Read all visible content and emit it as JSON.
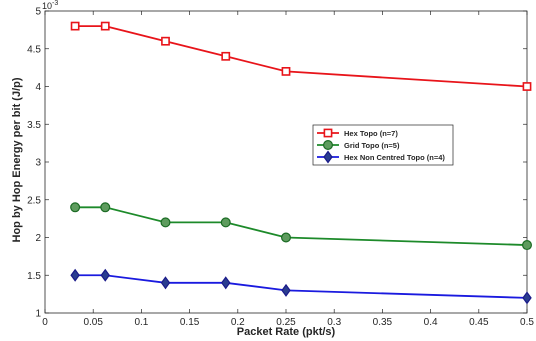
{
  "chart_data": {
    "type": "line",
    "xlabel": "Packet Rate (pkt/s)",
    "ylabel": "Hop by Hop Energy per bit (J/p)",
    "y_exponent_base": "10",
    "y_exponent_power": "-3",
    "xlim": [
      0,
      0.5
    ],
    "ylim": [
      1,
      5
    ],
    "x_ticks": [
      0,
      0.05,
      0.1,
      0.15,
      0.2,
      0.25,
      0.3,
      0.35,
      0.4,
      0.45,
      0.5
    ],
    "x_tick_labels": [
      "0",
      "0.05",
      "0.1",
      "0.15",
      "0.2",
      "0.25",
      "0.3",
      "0.35",
      "0.4",
      "0.45",
      "0.5"
    ],
    "y_ticks": [
      1,
      1.5,
      2,
      2.5,
      3,
      3.5,
      4,
      4.5,
      5
    ],
    "y_tick_labels": [
      "1",
      "1.5",
      "2",
      "2.5",
      "3",
      "3.5",
      "4",
      "4.5",
      "5"
    ],
    "grid": false,
    "legend_position": "center-right",
    "series": [
      {
        "name": "Hex Topo (n=7)",
        "color": "#e8141a",
        "marker": "square",
        "x": [
          0.03125,
          0.0625,
          0.125,
          0.1875,
          0.25,
          0.5
        ],
        "y": [
          4.8,
          4.8,
          4.6,
          4.4,
          4.2,
          4.0
        ]
      },
      {
        "name": "Grid Topo (n=5)",
        "color": "#1d8a2a",
        "marker_fill": "#5e9c5e",
        "marker": "circle",
        "x": [
          0.03125,
          0.0625,
          0.125,
          0.1875,
          0.25,
          0.5
        ],
        "y": [
          2.4,
          2.4,
          2.2,
          2.2,
          2.0,
          1.9
        ]
      },
      {
        "name": "Hex Non Centred Topo (n=4)",
        "color": "#1a1adf",
        "marker_fill": "#2a3d8f",
        "marker": "diamond",
        "x": [
          0.03125,
          0.0625,
          0.125,
          0.1875,
          0.25,
          0.5
        ],
        "y": [
          1.5,
          1.5,
          1.4,
          1.4,
          1.3,
          1.2
        ]
      }
    ]
  }
}
